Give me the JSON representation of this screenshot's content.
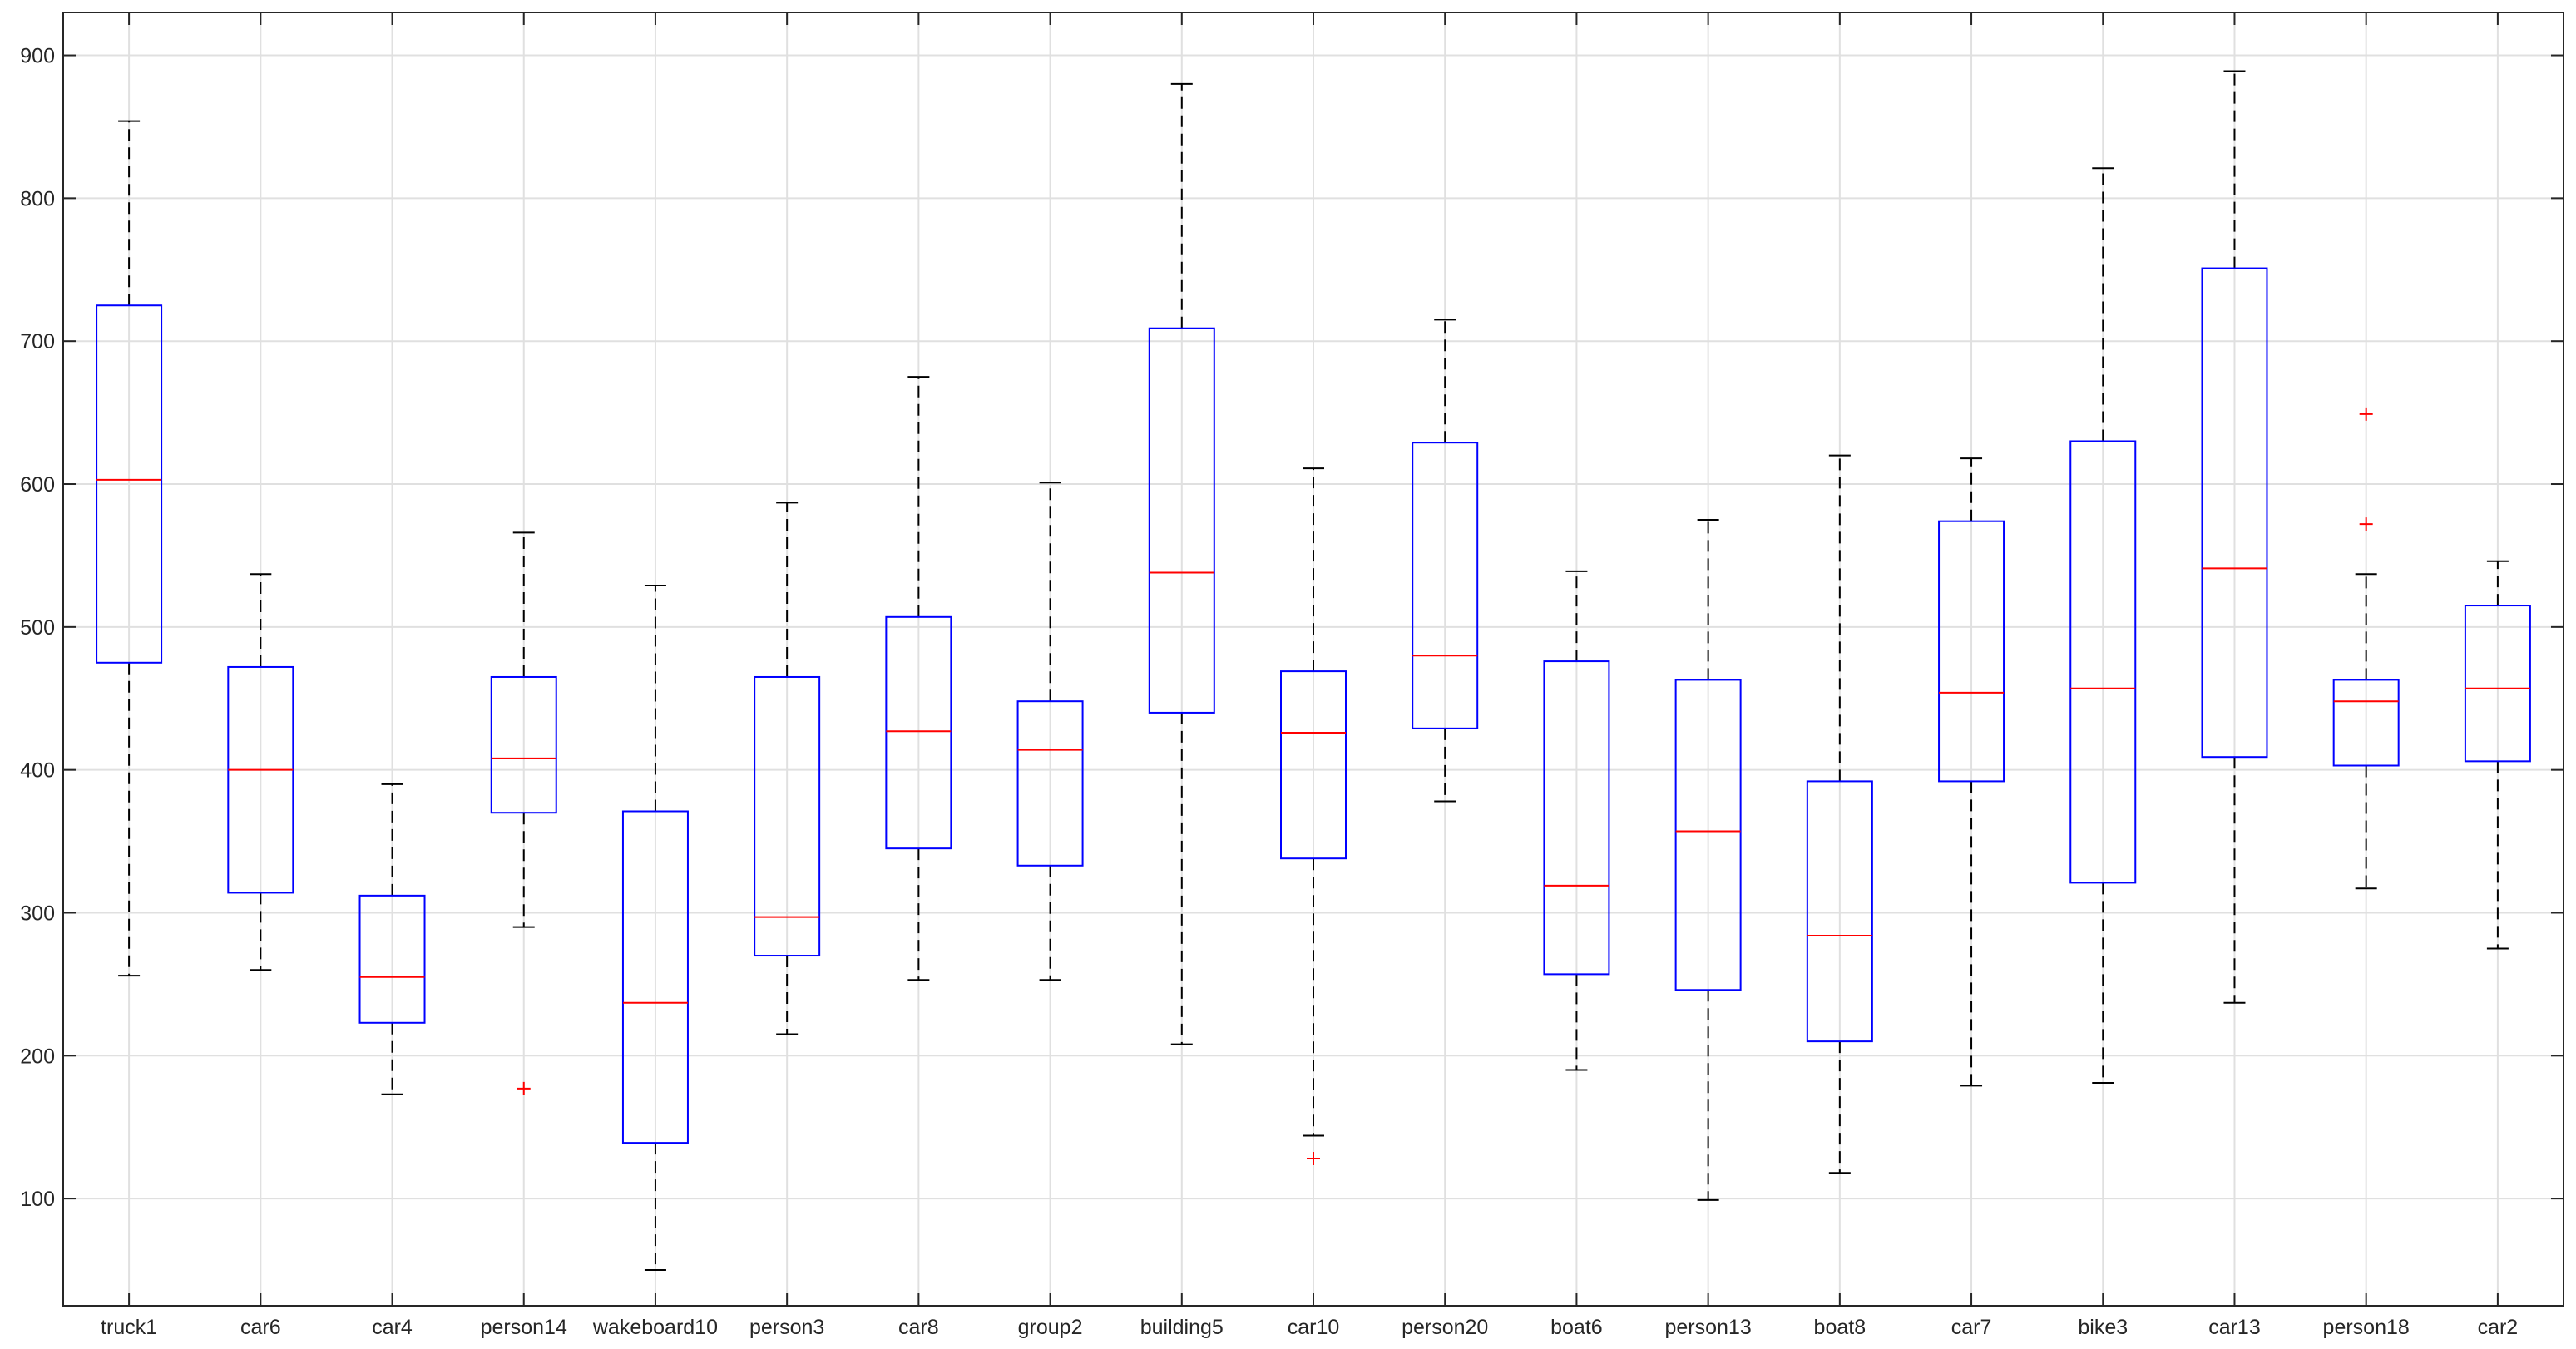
{
  "chart_data": {
    "type": "box",
    "title": "",
    "xlabel": "",
    "ylabel": "",
    "ylim": [
      25,
      930
    ],
    "yticks": [
      "100",
      "200",
      "300",
      "400",
      "500",
      "600",
      "700",
      "800",
      "900"
    ],
    "grid": true,
    "colors": {
      "box": "#0000ff",
      "median": "#ff0000",
      "whisker": "#000000",
      "outlier": "#ff0000",
      "grid": "#e0e0e0",
      "axis": "#262626"
    },
    "categories": [
      "truck1",
      "car6",
      "car4",
      "person14",
      "wakeboard10",
      "person3",
      "car8",
      "group2",
      "building5",
      "car10",
      "person20",
      "boat6",
      "person13",
      "boat8",
      "car7",
      "bike3",
      "car13",
      "person18",
      "car2"
    ],
    "boxes": [
      {
        "category": "truck1",
        "whisker_low": 256,
        "q1": 475,
        "median": 603,
        "q3": 725,
        "whisker_high": 854,
        "outliers": []
      },
      {
        "category": "car6",
        "whisker_low": 260,
        "q1": 314,
        "median": 400,
        "q3": 472,
        "whisker_high": 537,
        "outliers": []
      },
      {
        "category": "car4",
        "whisker_low": 173,
        "q1": 223,
        "median": 255,
        "q3": 312,
        "whisker_high": 390,
        "outliers": []
      },
      {
        "category": "person14",
        "whisker_low": 290,
        "q1": 370,
        "median": 408,
        "q3": 465,
        "whisker_high": 566,
        "outliers": [
          177
        ]
      },
      {
        "category": "wakeboard10",
        "whisker_low": 50,
        "q1": 139,
        "median": 237,
        "q3": 371,
        "whisker_high": 529,
        "outliers": []
      },
      {
        "category": "person3",
        "whisker_low": 215,
        "q1": 270,
        "median": 297,
        "q3": 465,
        "whisker_high": 587,
        "outliers": []
      },
      {
        "category": "car8",
        "whisker_low": 253,
        "q1": 345,
        "median": 427,
        "q3": 507,
        "whisker_high": 675,
        "outliers": []
      },
      {
        "category": "group2",
        "whisker_low": 253,
        "q1": 333,
        "median": 414,
        "q3": 448,
        "whisker_high": 601,
        "outliers": []
      },
      {
        "category": "building5",
        "whisker_low": 208,
        "q1": 440,
        "median": 538,
        "q3": 709,
        "whisker_high": 880,
        "outliers": []
      },
      {
        "category": "car10",
        "whisker_low": 144,
        "q1": 338,
        "median": 426,
        "q3": 469,
        "whisker_high": 611,
        "outliers": [
          128
        ]
      },
      {
        "category": "person20",
        "whisker_low": 378,
        "q1": 429,
        "median": 480,
        "q3": 629,
        "whisker_high": 715,
        "outliers": []
      },
      {
        "category": "boat6",
        "whisker_low": 190,
        "q1": 257,
        "median": 319,
        "q3": 476,
        "whisker_high": 539,
        "outliers": []
      },
      {
        "category": "person13",
        "whisker_low": 99,
        "q1": 246,
        "median": 357,
        "q3": 463,
        "whisker_high": 575,
        "outliers": []
      },
      {
        "category": "boat8",
        "whisker_low": 118,
        "q1": 210,
        "median": 284,
        "q3": 392,
        "whisker_high": 620,
        "outliers": []
      },
      {
        "category": "car7",
        "whisker_low": 179,
        "q1": 392,
        "median": 454,
        "q3": 574,
        "whisker_high": 618,
        "outliers": []
      },
      {
        "category": "bike3",
        "whisker_low": 181,
        "q1": 321,
        "median": 457,
        "q3": 630,
        "whisker_high": 821,
        "outliers": []
      },
      {
        "category": "car13",
        "whisker_low": 237,
        "q1": 409,
        "median": 541,
        "q3": 751,
        "whisker_high": 889,
        "outliers": []
      },
      {
        "category": "person18",
        "whisker_low": 317,
        "q1": 403,
        "median": 448,
        "q3": 463,
        "whisker_high": 537,
        "outliers": [
          572,
          649
        ]
      },
      {
        "category": "car2",
        "whisker_low": 275,
        "q1": 406,
        "median": 457,
        "q3": 515,
        "whisker_high": 546,
        "outliers": []
      }
    ]
  }
}
